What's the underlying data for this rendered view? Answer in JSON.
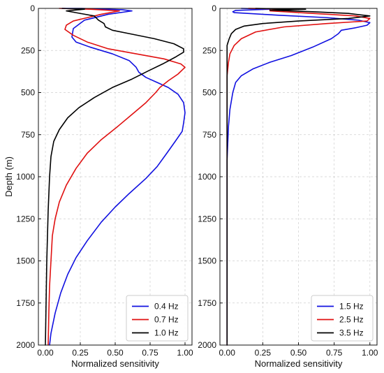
{
  "chart_data": [
    {
      "type": "line",
      "xlabel": "Normalized sensitivity",
      "ylabel": "Depth (m)",
      "xlim": [
        -0.05,
        1.05
      ],
      "ylim": [
        2000,
        0
      ],
      "xticks": [
        "0.00",
        "0.25",
        "0.50",
        "0.75",
        "1.00"
      ],
      "yticks": [
        "0",
        "250",
        "500",
        "750",
        "1000",
        "1250",
        "1500",
        "1750",
        "2000"
      ],
      "grid": true,
      "legend_position": "bottom-right",
      "series": [
        {
          "name": "0.4 Hz",
          "color": "#1010e0",
          "points": [
            [
              0.12,
              0
            ],
            [
              0.26,
              0
            ],
            [
              0.55,
              8
            ],
            [
              0.62,
              15
            ],
            [
              0.45,
              35
            ],
            [
              0.28,
              70
            ],
            [
              0.2,
              120
            ],
            [
              0.19,
              170
            ],
            [
              0.22,
              200
            ],
            [
              0.32,
              230
            ],
            [
              0.48,
              270
            ],
            [
              0.6,
              310
            ],
            [
              0.65,
              350
            ],
            [
              0.67,
              380
            ],
            [
              0.72,
              410
            ],
            [
              0.8,
              440
            ],
            [
              0.88,
              470
            ],
            [
              0.95,
              510
            ],
            [
              0.99,
              560
            ],
            [
              1.0,
              620
            ],
            [
              0.99,
              680
            ],
            [
              0.98,
              730
            ],
            [
              0.93,
              790
            ],
            [
              0.87,
              860
            ],
            [
              0.8,
              940
            ],
            [
              0.72,
              1010
            ],
            [
              0.6,
              1100
            ],
            [
              0.5,
              1180
            ],
            [
              0.4,
              1270
            ],
            [
              0.3,
              1380
            ],
            [
              0.22,
              1480
            ],
            [
              0.16,
              1580
            ],
            [
              0.11,
              1690
            ],
            [
              0.07,
              1810
            ],
            [
              0.04,
              1930
            ],
            [
              0.03,
              2000
            ]
          ]
        },
        {
          "name": "0.7 Hz",
          "color": "#e01010",
          "points": [
            [
              0.1,
              0
            ],
            [
              0.32,
              5
            ],
            [
              0.53,
              15
            ],
            [
              0.4,
              35
            ],
            [
              0.3,
              55
            ],
            [
              0.2,
              75
            ],
            [
              0.15,
              100
            ],
            [
              0.14,
              125
            ],
            [
              0.2,
              160
            ],
            [
              0.3,
              200
            ],
            [
              0.45,
              240
            ],
            [
              0.65,
              270
            ],
            [
              0.85,
              300
            ],
            [
              0.97,
              330
            ],
            [
              1.0,
              350
            ],
            [
              0.95,
              390
            ],
            [
              0.88,
              430
            ],
            [
              0.82,
              470
            ],
            [
              0.79,
              500
            ],
            [
              0.72,
              560
            ],
            [
              0.62,
              630
            ],
            [
              0.52,
              700
            ],
            [
              0.4,
              780
            ],
            [
              0.3,
              860
            ],
            [
              0.22,
              950
            ],
            [
              0.15,
              1050
            ],
            [
              0.1,
              1150
            ],
            [
              0.07,
              1250
            ],
            [
              0.05,
              1350
            ],
            [
              0.04,
              1500
            ],
            [
              0.03,
              1650
            ],
            [
              0.025,
              1800
            ],
            [
              0.02,
              2000
            ]
          ]
        },
        {
          "name": "1.0 Hz",
          "color": "#000000",
          "points": [
            [
              0.12,
              0
            ],
            [
              0.28,
              5
            ],
            [
              0.15,
              15
            ],
            [
              0.25,
              30
            ],
            [
              0.35,
              45
            ],
            [
              0.38,
              70
            ],
            [
              0.42,
              90
            ],
            [
              0.43,
              110
            ],
            [
              0.48,
              130
            ],
            [
              0.6,
              150
            ],
            [
              0.78,
              180
            ],
            [
              0.92,
              210
            ],
            [
              0.99,
              240
            ],
            [
              0.99,
              260
            ],
            [
              0.93,
              290
            ],
            [
              0.84,
              330
            ],
            [
              0.74,
              370
            ],
            [
              0.62,
              420
            ],
            [
              0.48,
              470
            ],
            [
              0.35,
              530
            ],
            [
              0.24,
              590
            ],
            [
              0.16,
              650
            ],
            [
              0.1,
              720
            ],
            [
              0.06,
              790
            ],
            [
              0.04,
              880
            ],
            [
              0.03,
              1000
            ],
            [
              0.02,
              1200
            ],
            [
              0.01,
              1500
            ],
            [
              0.0,
              2000
            ]
          ]
        }
      ]
    },
    {
      "type": "line",
      "xlabel": "Normalized sensitivity",
      "ylabel": "",
      "xlim": [
        -0.05,
        1.05
      ],
      "ylim": [
        2000,
        0
      ],
      "xticks": [
        "0.00",
        "0.25",
        "0.50",
        "0.75",
        "1.00"
      ],
      "yticks": [
        "0",
        "250",
        "500",
        "750",
        "1000",
        "1250",
        "1500",
        "1750",
        "2000"
      ],
      "grid": true,
      "legend_position": "bottom-right",
      "series": [
        {
          "name": "1.5 Hz",
          "color": "#1010e0",
          "points": [
            [
              0.1,
              0
            ],
            [
              0.3,
              5
            ],
            [
              0.06,
              12
            ],
            [
              0.04,
              20
            ],
            [
              0.05,
              25
            ],
            [
              0.35,
              40
            ],
            [
              0.7,
              55
            ],
            [
              0.92,
              70
            ],
            [
              1.0,
              85
            ],
            [
              0.98,
              100
            ],
            [
              0.9,
              115
            ],
            [
              0.8,
              130
            ],
            [
              0.78,
              150
            ],
            [
              0.73,
              180
            ],
            [
              0.6,
              230
            ],
            [
              0.45,
              280
            ],
            [
              0.3,
              320
            ],
            [
              0.18,
              360
            ],
            [
              0.1,
              400
            ],
            [
              0.06,
              440
            ],
            [
              0.04,
              500
            ],
            [
              0.02,
              600
            ],
            [
              0.01,
              700
            ],
            [
              0.0,
              900
            ],
            [
              0.0,
              2000
            ]
          ]
        },
        {
          "name": "2.5 Hz",
          "color": "#e01010",
          "points": [
            [
              0.15,
              0
            ],
            [
              0.5,
              5
            ],
            [
              0.3,
              15
            ],
            [
              0.6,
              30
            ],
            [
              0.9,
              45
            ],
            [
              1.0,
              60
            ],
            [
              0.98,
              75
            ],
            [
              0.7,
              90
            ],
            [
              0.4,
              110
            ],
            [
              0.2,
              140
            ],
            [
              0.1,
              180
            ],
            [
              0.05,
              220
            ],
            [
              0.02,
              270
            ],
            [
              0.01,
              320
            ],
            [
              0.0,
              400
            ],
            [
              0.0,
              2000
            ]
          ]
        },
        {
          "name": "3.5 Hz",
          "color": "#000000",
          "points": [
            [
              0.2,
              0
            ],
            [
              0.55,
              5
            ],
            [
              0.3,
              10
            ],
            [
              0.6,
              20
            ],
            [
              0.85,
              30
            ],
            [
              1.0,
              45
            ],
            [
              0.85,
              60
            ],
            [
              0.5,
              75
            ],
            [
              0.25,
              90
            ],
            [
              0.12,
              105
            ],
            [
              0.06,
              125
            ],
            [
              0.03,
              150
            ],
            [
              0.015,
              180
            ],
            [
              0.0,
              220
            ],
            [
              0.0,
              2000
            ]
          ]
        }
      ]
    }
  ]
}
